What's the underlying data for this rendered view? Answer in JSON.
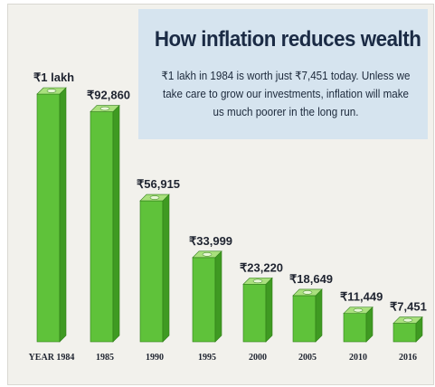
{
  "header": {
    "title": "How inflation reduces wealth",
    "subtitle": "₹1 lakh in 1984 is worth just ₹7,451 today. Unless we take care to grow our investments, inflation will make us much poorer in the long run."
  },
  "chart_data": {
    "type": "bar",
    "title": "How inflation reduces wealth",
    "categories": [
      "YEAR 1984",
      "1985",
      "1990",
      "1995",
      "2000",
      "2005",
      "2010",
      "2016"
    ],
    "values": [
      100000,
      92860,
      56915,
      33999,
      23220,
      18649,
      11449,
      7451
    ],
    "value_labels": [
      "₹1 lakh",
      "₹92,860",
      "₹56,915",
      "₹33,999",
      "₹23,220",
      "₹18,649",
      "₹11,449",
      "₹7,451"
    ],
    "grid": false,
    "legend": "none",
    "colors": {
      "bar_front": "#5fc23a",
      "bar_side": "#3f9a22",
      "bar_top": "#a9e07d",
      "bar_edge": "#2f7d18"
    }
  }
}
